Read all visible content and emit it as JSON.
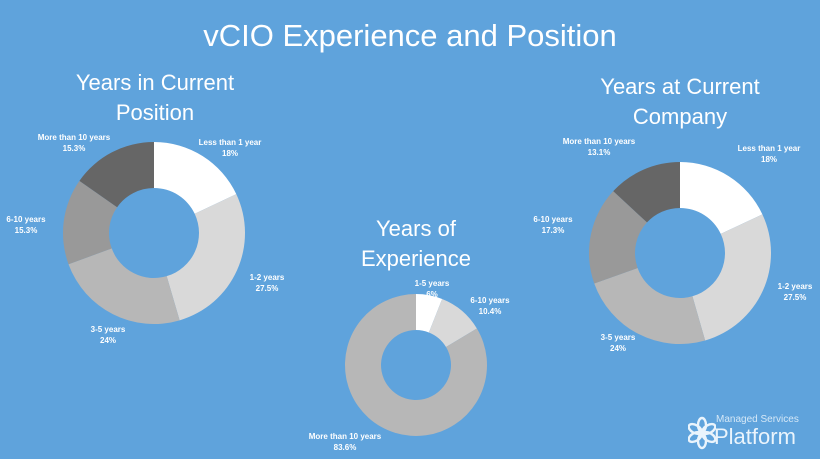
{
  "title": "vCIO Experience and Position",
  "colors": {
    "background": "#5fa3dc",
    "slices": [
      "#ffffff",
      "#d9d9d9",
      "#b7b7b7",
      "#999999",
      "#666666"
    ]
  },
  "chart_data": [
    {
      "type": "pie",
      "variant": "donut",
      "title": "Years in Current Position",
      "categories": [
        "Less than 1 year",
        "1-2 years",
        "3-5 years",
        "6-10 years",
        "More than 10 years"
      ],
      "values": [
        18,
        27.5,
        24,
        15.3,
        15.3
      ],
      "labels": [
        "18%",
        "27.5%",
        "24%",
        "15.3%",
        "15.3%"
      ]
    },
    {
      "type": "pie",
      "variant": "donut",
      "title": "Years of Experience",
      "categories": [
        "1-5 years",
        "6-10 years",
        "More than 10 years"
      ],
      "values": [
        6,
        10.4,
        83.6
      ],
      "labels": [
        "6%",
        "10.4%",
        "83.6%"
      ]
    },
    {
      "type": "pie",
      "variant": "donut",
      "title": "Years at Current Company",
      "categories": [
        "Less than 1 year",
        "1-2 years",
        "3-5 years",
        "6-10 years",
        "More than 10 years"
      ],
      "values": [
        18,
        27.5,
        24,
        17.3,
        13.1
      ],
      "labels": [
        "18%",
        "27.5%",
        "24%",
        "17.3%",
        "13.1%"
      ]
    }
  ],
  "logo": {
    "line1": "Managed Services",
    "line2": "Platform"
  }
}
